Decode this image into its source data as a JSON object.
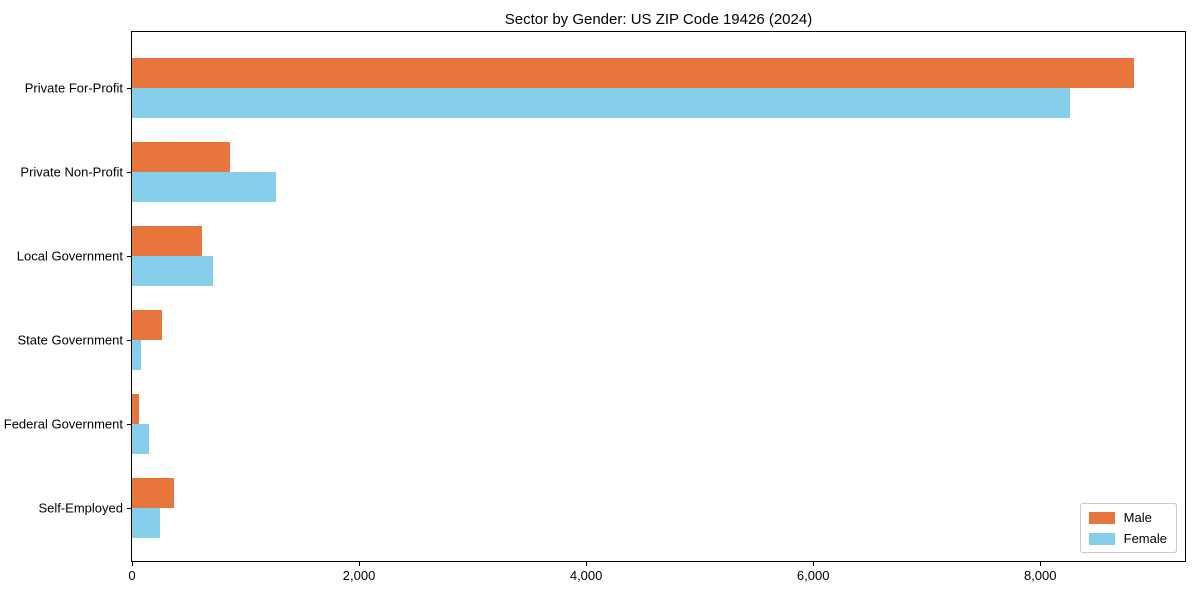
{
  "chart_data": {
    "type": "bar",
    "orientation": "horizontal",
    "title": "Sector by Gender: US ZIP Code 19426 (2024)",
    "categories": [
      "Private For-Profit",
      "Private Non-Profit",
      "Local Government",
      "State Government",
      "Federal Government",
      "Self-Employed"
    ],
    "series": [
      {
        "name": "Male",
        "color": "#E8763C",
        "values": [
          8830,
          860,
          620,
          260,
          60,
          370
        ]
      },
      {
        "name": "Female",
        "color": "#87CEEB",
        "values": [
          8260,
          1270,
          710,
          80,
          150,
          250
        ]
      }
    ],
    "xlim": [
      0,
      9275
    ],
    "xticks": [
      0,
      2000,
      4000,
      6000,
      8000
    ],
    "xtick_labels": [
      "0",
      "2,000",
      "4,000",
      "6,000",
      "8,000"
    ],
    "legend_position": "lower right",
    "grid": false,
    "spine_color": "#000000",
    "background_color": "#ffffff"
  }
}
